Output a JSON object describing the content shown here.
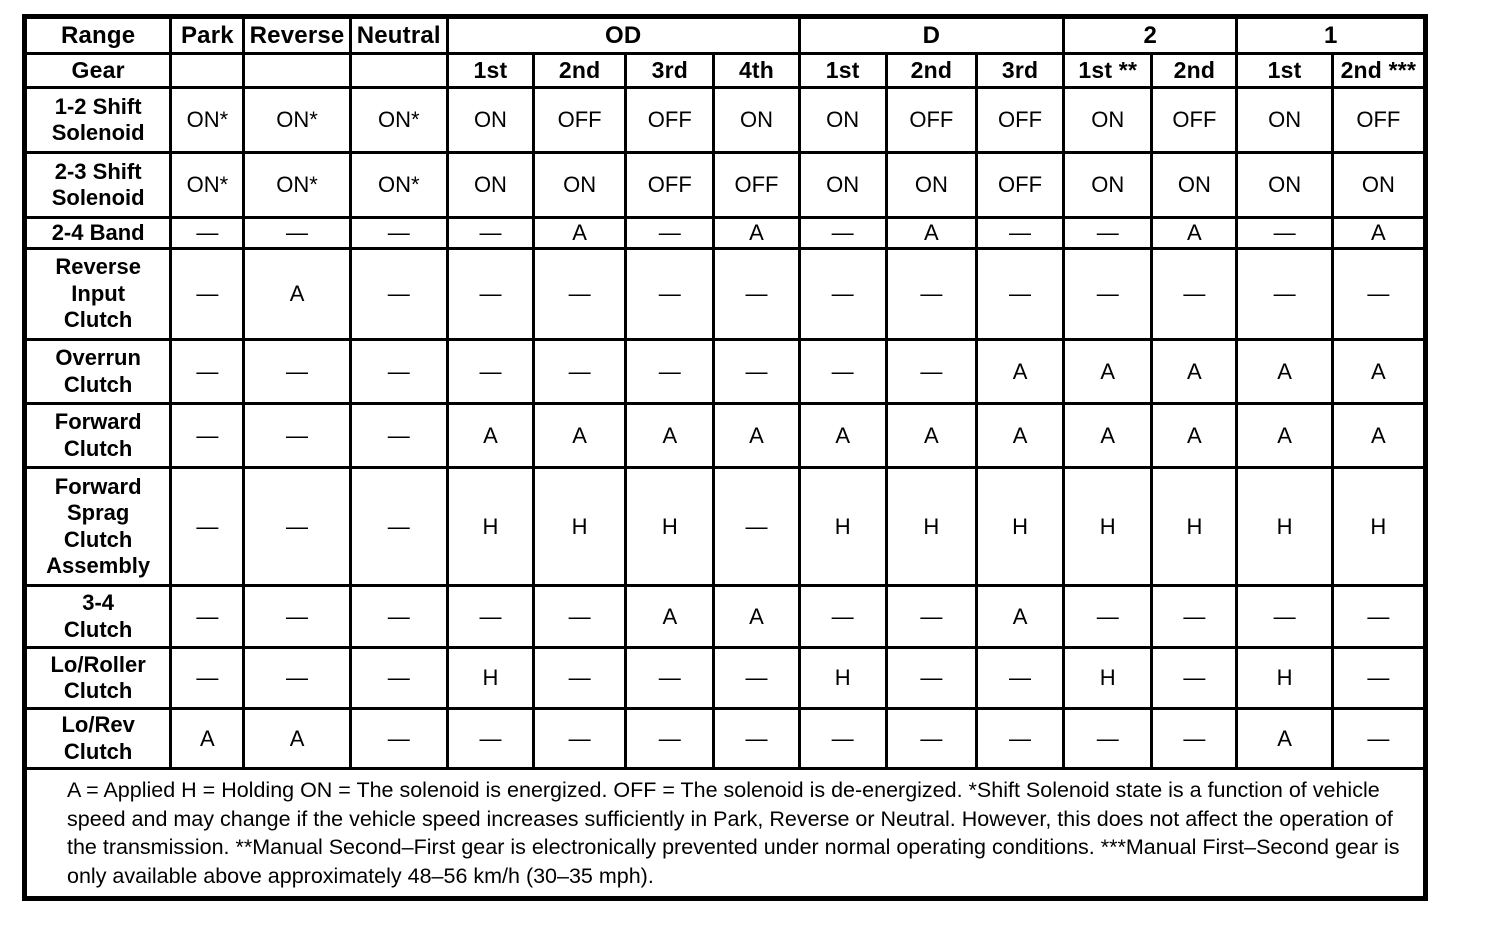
{
  "table": {
    "range_label": "Range",
    "gear_label": "Gear",
    "range_groups": [
      {
        "label": "Park"
      },
      {
        "label": "Reverse"
      },
      {
        "label": "Neutral"
      },
      {
        "label": "OD"
      },
      {
        "label": "D"
      },
      {
        "label": "2"
      },
      {
        "label": "1"
      }
    ],
    "gear_cols": [
      "1st",
      "2nd",
      "3rd",
      "4th",
      "1st",
      "2nd",
      "3rd",
      "1st **",
      "2nd",
      "1st",
      "2nd ***"
    ],
    "rows": [
      {
        "label": "1-2 Shift\nSolenoid",
        "cells": [
          "ON*",
          "ON*",
          "ON*",
          "ON",
          "OFF",
          "OFF",
          "ON",
          "ON",
          "OFF",
          "OFF",
          "ON",
          "OFF",
          "ON",
          "OFF"
        ]
      },
      {
        "label": "2-3 Shift\nSolenoid",
        "cells": [
          "ON*",
          "ON*",
          "ON*",
          "ON",
          "ON",
          "OFF",
          "OFF",
          "ON",
          "ON",
          "OFF",
          "ON",
          "ON",
          "ON",
          "ON"
        ]
      },
      {
        "label": "2-4 Band",
        "cells": [
          "—",
          "—",
          "—",
          "—",
          "A",
          "—",
          "A",
          "—",
          "A",
          "—",
          "—",
          "A",
          "—",
          "A"
        ]
      },
      {
        "label": "Reverse\nInput\nClutch",
        "cells": [
          "—",
          "A",
          "—",
          "—",
          "—",
          "—",
          "—",
          "—",
          "—",
          "—",
          "—",
          "—",
          "—",
          "—"
        ]
      },
      {
        "label": "Overrun\nClutch",
        "cells": [
          "—",
          "—",
          "—",
          "—",
          "—",
          "—",
          "—",
          "—",
          "—",
          "A",
          "A",
          "A",
          "A",
          "A"
        ]
      },
      {
        "label": "Forward\nClutch",
        "cells": [
          "—",
          "—",
          "—",
          "A",
          "A",
          "A",
          "A",
          "A",
          "A",
          "A",
          "A",
          "A",
          "A",
          "A"
        ]
      },
      {
        "label": "Forward\nSprag\nClutch\nAssembly",
        "cells": [
          "—",
          "—",
          "—",
          "H",
          "H",
          "H",
          "—",
          "H",
          "H",
          "H",
          "H",
          "H",
          "H",
          "H"
        ]
      },
      {
        "label": "3-4\nClutch",
        "cells": [
          "—",
          "—",
          "—",
          "—",
          "—",
          "A",
          "A",
          "—",
          "—",
          "A",
          "—",
          "—",
          "—",
          "—"
        ]
      },
      {
        "label": "Lo/Roller\nClutch",
        "cells": [
          "—",
          "—",
          "—",
          "H",
          "—",
          "—",
          "—",
          "H",
          "—",
          "—",
          "H",
          "—",
          "H",
          "—"
        ]
      },
      {
        "label": "Lo/Rev\nClutch",
        "cells": [
          "A",
          "A",
          "—",
          "—",
          "—",
          "—",
          "—",
          "—",
          "—",
          "—",
          "—",
          "—",
          "A",
          "—"
        ]
      }
    ],
    "footnote": "A = Applied H = Holding ON = The solenoid is energized. OFF = The solenoid is de-energized. *Shift Solenoid state is a function of vehicle speed and may change if the vehicle speed increases sufficiently in Park, Reverse or Neutral. However, this does not affect the operation of the transmission. **Manual Second–First gear is electronically prevented under normal operating conditions. ***Manual First–Second gear is only available above approximately 48–56 km/h (30–35 mph)."
  }
}
